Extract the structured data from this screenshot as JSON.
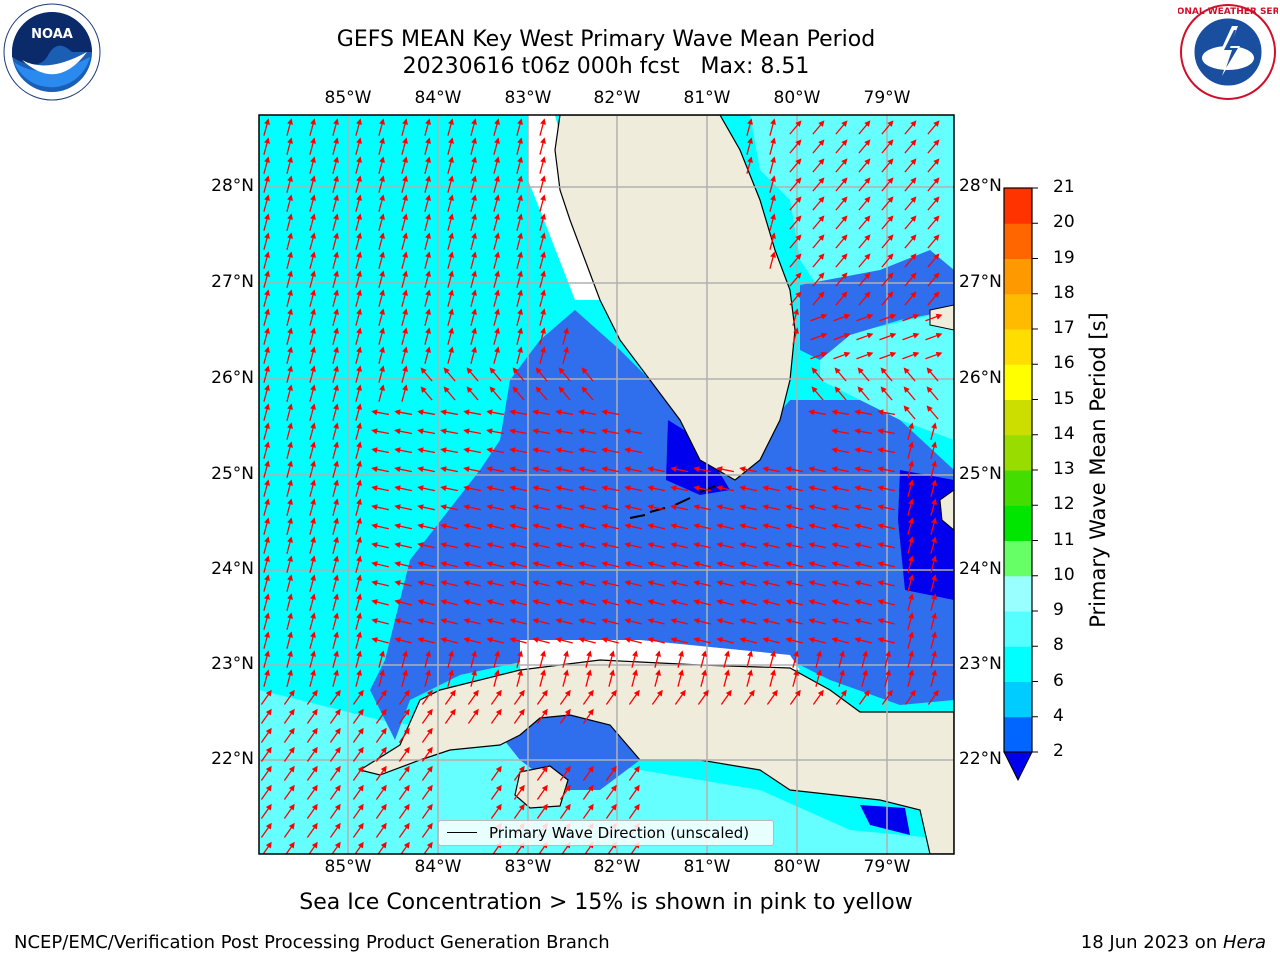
{
  "title_line1": "GEFS MEAN Key West Primary Wave Mean Period",
  "title_line2": "20230616 t06z 000h fcst   Max: 8.51",
  "lon_labels": [
    "85°W",
    "84°W",
    "83°W",
    "82°W",
    "81°W",
    "80°W",
    "79°W"
  ],
  "lat_labels": [
    "28°N",
    "27°N",
    "26°N",
    "25°N",
    "24°N",
    "23°N",
    "22°N"
  ],
  "colorbar": {
    "title": "Primary Wave Mean Period [s]",
    "ticks": [
      "2",
      "4",
      "6",
      "8",
      "9",
      "10",
      "11",
      "12",
      "13",
      "14",
      "15",
      "16",
      "17",
      "18",
      "19",
      "20",
      "21"
    ],
    "colors": [
      "#0066ff",
      "#00ccff",
      "#00ffff",
      "#55ffff",
      "#99ffff",
      "#66ff66",
      "#00e600",
      "#44dd00",
      "#99dd00",
      "#ccdd00",
      "#ffff00",
      "#ffdd00",
      "#ffbb00",
      "#ff9900",
      "#ff6600",
      "#ff3300",
      "#ff0000"
    ],
    "extend_color": "#0000ee"
  },
  "legend_text": "Primary Wave Direction (unscaled)",
  "subtitle": "Sea Ice Concentration > 15% is shown in pink to yellow",
  "footer_left": "NCEP/EMC/Verification Post Processing Product Generation Branch",
  "footer_right_date": "18 Jun 2023 on ",
  "footer_right_host": "Hera",
  "logos": {
    "left": "NOAA",
    "right": "NATIONAL WEATHER SERVICE"
  },
  "colors": {
    "land": "#efecdc",
    "deep": "#0000ee",
    "mid": "#2f6fee",
    "shallow": "#00ffff",
    "light": "#66ffff",
    "arrow": "#ff0000"
  }
}
